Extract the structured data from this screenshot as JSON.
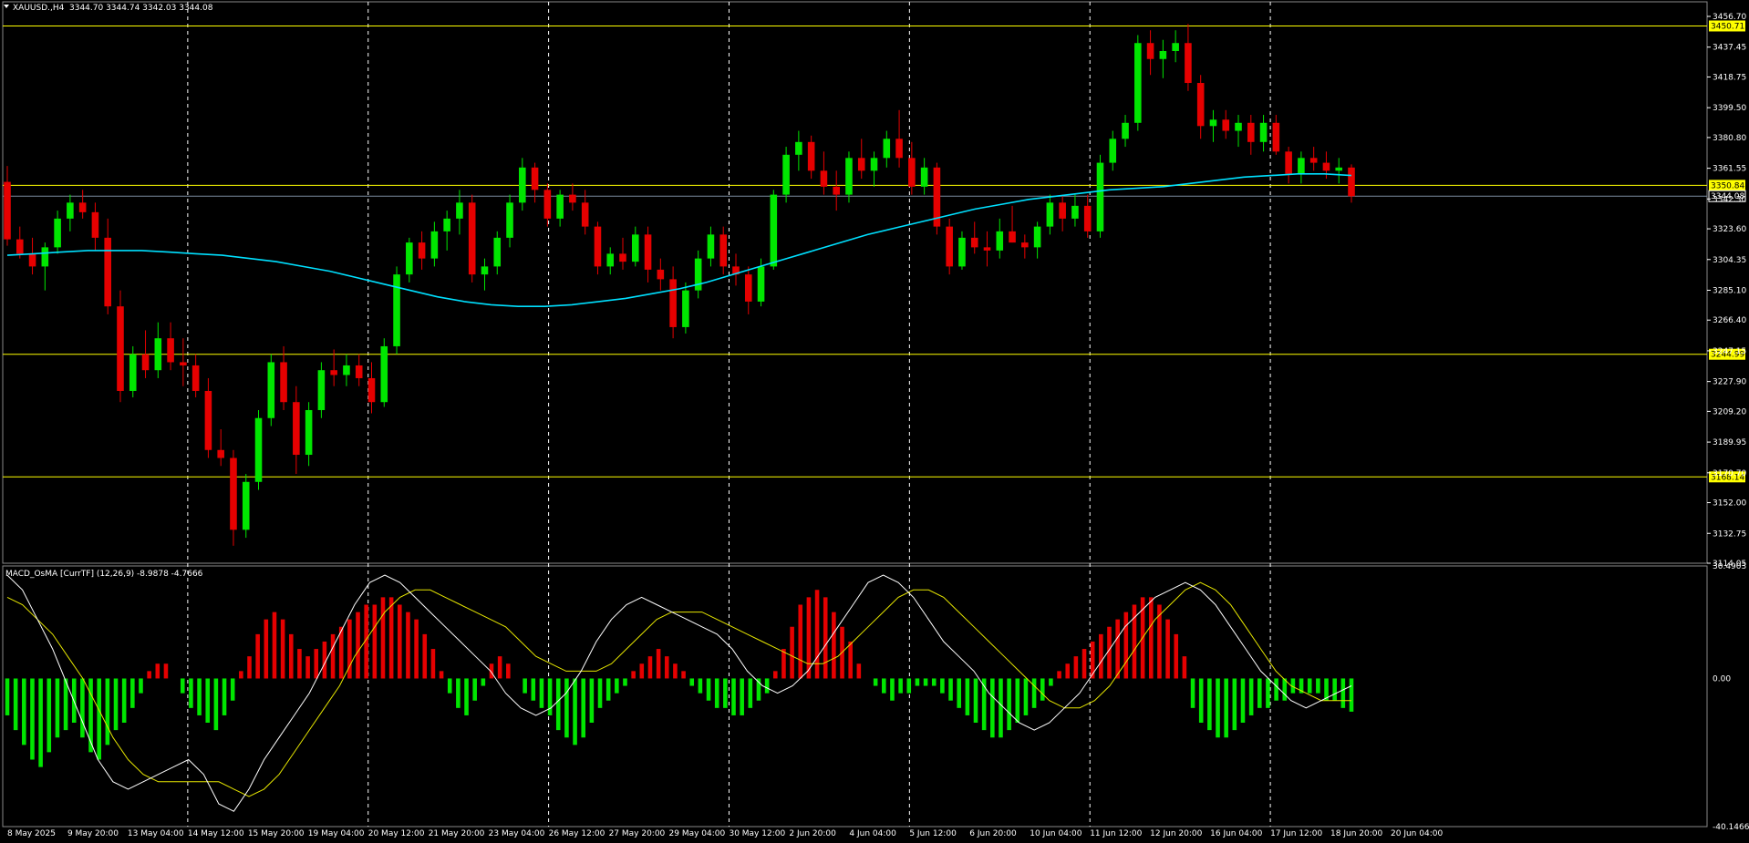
{
  "header": {
    "symbol": "XAUUSD.,H4",
    "ohlc": "3344.70 3344.74 3342.03 3344.08"
  },
  "indicator_header": "MACD_OsMA [CurrTF] (12,26,9) -8.9878 -4.7666",
  "colors": {
    "background": "#000000",
    "grid": "#ffffff",
    "bull": "#00e600",
    "bear": "#e60000",
    "ma_line": "#00e0ff",
    "level": "#ffff00",
    "macd_line": "#ffffff",
    "signal_line": "#e6e600"
  },
  "chart_data": [
    {
      "type": "candlestick",
      "symbol": "XAUUSD.",
      "timeframe": "H4",
      "ylim": [
        3114.05,
        3456.7
      ],
      "price_axis_ticks": [
        "3456.70",
        "3437.45",
        "3418.75",
        "3399.50",
        "3380.80",
        "3361.55",
        "3342.30",
        "3323.60",
        "3304.35",
        "3285.10",
        "3266.40",
        "3247.15",
        "3227.90",
        "3209.20",
        "3189.95",
        "3170.70",
        "3152.00",
        "3132.75",
        "3114.05"
      ],
      "time_axis_ticks": [
        "8 May 2025",
        "9 May 20:00",
        "13 May 04:00",
        "14 May 12:00",
        "15 May 20:00",
        "19 May 04:00",
        "20 May 12:00",
        "21 May 20:00",
        "23 May 04:00",
        "26 May 12:00",
        "27 May 20:00",
        "29 May 04:00",
        "30 May 12:00",
        "2 Jun 20:00",
        "4 Jun 04:00",
        "5 Jun 12:00",
        "6 Jun 20:00",
        "10 Jun 04:00",
        "11 Jun 12:00",
        "12 Jun 20:00",
        "16 Jun 04:00",
        "17 Jun 12:00",
        "18 Jun 20:00",
        "20 Jun 04:00"
      ],
      "horizontal_levels": [
        {
          "price": "3450.71",
          "color": "#ffff00"
        },
        {
          "price": "3350.84",
          "color": "#ffff00"
        },
        {
          "price": "3244.99",
          "color": "#ffff00"
        },
        {
          "price": "3168.14",
          "color": "#ffff00"
        }
      ],
      "current_price": "3344.08",
      "candles": [
        [
          3353,
          3363,
          3313,
          3317
        ],
        [
          3317,
          3325,
          3305,
          3308
        ],
        [
          3308,
          3318,
          3295,
          3300
        ],
        [
          3300,
          3315,
          3285,
          3312
        ],
        [
          3312,
          3335,
          3308,
          3330
        ],
        [
          3330,
          3345,
          3322,
          3340
        ],
        [
          3340,
          3348,
          3330,
          3334
        ],
        [
          3334,
          3340,
          3310,
          3318
        ],
        [
          3318,
          3330,
          3270,
          3275
        ],
        [
          3275,
          3285,
          3215,
          3222
        ],
        [
          3222,
          3250,
          3218,
          3245
        ],
        [
          3245,
          3260,
          3230,
          3235
        ],
        [
          3235,
          3265,
          3230,
          3255
        ],
        [
          3255,
          3265,
          3235,
          3240
        ],
        [
          3240,
          3255,
          3225,
          3238
        ],
        [
          3238,
          3245,
          3218,
          3222
        ],
        [
          3222,
          3230,
          3180,
          3185
        ],
        [
          3185,
          3198,
          3175,
          3180
        ],
        [
          3180,
          3185,
          3125,
          3135
        ],
        [
          3135,
          3170,
          3130,
          3165
        ],
        [
          3165,
          3210,
          3160,
          3205
        ],
        [
          3205,
          3245,
          3200,
          3240
        ],
        [
          3240,
          3250,
          3210,
          3215
        ],
        [
          3215,
          3225,
          3170,
          3182
        ],
        [
          3182,
          3215,
          3175,
          3210
        ],
        [
          3210,
          3240,
          3205,
          3235
        ],
        [
          3235,
          3248,
          3225,
          3232
        ],
        [
          3232,
          3245,
          3225,
          3238
        ],
        [
          3238,
          3245,
          3225,
          3230
        ],
        [
          3230,
          3240,
          3208,
          3215
        ],
        [
          3215,
          3255,
          3212,
          3250
        ],
        [
          3250,
          3300,
          3245,
          3295
        ],
        [
          3295,
          3318,
          3290,
          3315
        ],
        [
          3315,
          3322,
          3298,
          3305
        ],
        [
          3305,
          3328,
          3300,
          3322
        ],
        [
          3322,
          3335,
          3310,
          3330
        ],
        [
          3330,
          3348,
          3320,
          3340
        ],
        [
          3340,
          3345,
          3290,
          3295
        ],
        [
          3295,
          3305,
          3285,
          3300
        ],
        [
          3300,
          3322,
          3295,
          3318
        ],
        [
          3318,
          3345,
          3312,
          3340
        ],
        [
          3340,
          3368,
          3335,
          3362
        ],
        [
          3362,
          3365,
          3340,
          3348
        ],
        [
          3348,
          3352,
          3325,
          3330
        ],
        [
          3330,
          3348,
          3325,
          3345
        ],
        [
          3345,
          3352,
          3335,
          3340
        ],
        [
          3340,
          3348,
          3320,
          3325
        ],
        [
          3325,
          3328,
          3295,
          3300
        ],
        [
          3300,
          3312,
          3295,
          3308
        ],
        [
          3308,
          3318,
          3298,
          3303
        ],
        [
          3303,
          3325,
          3300,
          3320
        ],
        [
          3320,
          3325,
          3290,
          3298
        ],
        [
          3298,
          3305,
          3285,
          3292
        ],
        [
          3292,
          3300,
          3255,
          3262
        ],
        [
          3262,
          3290,
          3258,
          3285
        ],
        [
          3285,
          3310,
          3280,
          3305
        ],
        [
          3305,
          3325,
          3300,
          3320
        ],
        [
          3320,
          3325,
          3295,
          3300
        ],
        [
          3300,
          3308,
          3288,
          3295
        ],
        [
          3295,
          3300,
          3270,
          3278
        ],
        [
          3278,
          3305,
          3275,
          3300
        ],
        [
          3300,
          3348,
          3298,
          3345
        ],
        [
          3345,
          3375,
          3340,
          3370
        ],
        [
          3370,
          3385,
          3360,
          3378
        ],
        [
          3378,
          3382,
          3355,
          3360
        ],
        [
          3360,
          3372,
          3345,
          3350
        ],
        [
          3350,
          3360,
          3335,
          3345
        ],
        [
          3345,
          3372,
          3340,
          3368
        ],
        [
          3368,
          3380,
          3355,
          3360
        ],
        [
          3360,
          3372,
          3350,
          3368
        ],
        [
          3368,
          3385,
          3362,
          3380
        ],
        [
          3380,
          3398,
          3362,
          3368
        ],
        [
          3368,
          3378,
          3345,
          3350
        ],
        [
          3350,
          3368,
          3345,
          3362
        ],
        [
          3362,
          3365,
          3320,
          3325
        ],
        [
          3325,
          3330,
          3295,
          3300
        ],
        [
          3300,
          3322,
          3298,
          3318
        ],
        [
          3318,
          3328,
          3308,
          3312
        ],
        [
          3312,
          3322,
          3300,
          3310
        ],
        [
          3310,
          3330,
          3305,
          3322
        ],
        [
          3322,
          3338,
          3315,
          3315
        ],
        [
          3315,
          3320,
          3305,
          3312
        ],
        [
          3312,
          3328,
          3305,
          3325
        ],
        [
          3325,
          3345,
          3320,
          3340
        ],
        [
          3340,
          3345,
          3322,
          3330
        ],
        [
          3330,
          3345,
          3325,
          3338
        ],
        [
          3338,
          3345,
          3318,
          3322
        ],
        [
          3322,
          3370,
          3318,
          3365
        ],
        [
          3365,
          3385,
          3360,
          3380
        ],
        [
          3380,
          3395,
          3375,
          3390
        ],
        [
          3390,
          3445,
          3385,
          3440
        ],
        [
          3440,
          3448,
          3420,
          3430
        ],
        [
          3430,
          3442,
          3418,
          3435
        ],
        [
          3435,
          3448,
          3428,
          3440
        ],
        [
          3440,
          3452,
          3410,
          3415
        ],
        [
          3415,
          3420,
          3380,
          3388
        ],
        [
          3388,
          3398,
          3378,
          3392
        ],
        [
          3392,
          3398,
          3380,
          3385
        ],
        [
          3385,
          3395,
          3375,
          3390
        ],
        [
          3390,
          3395,
          3370,
          3378
        ],
        [
          3378,
          3395,
          3372,
          3390
        ],
        [
          3390,
          3395,
          3370,
          3372
        ],
        [
          3372,
          3375,
          3352,
          3358
        ],
        [
          3358,
          3372,
          3352,
          3368
        ],
        [
          3368,
          3375,
          3360,
          3365
        ],
        [
          3365,
          3372,
          3355,
          3360
        ],
        [
          3360,
          3368,
          3352,
          3362
        ],
        [
          3362,
          3364,
          3340,
          3344
        ]
      ],
      "moving_average": [
        3307,
        3308,
        3309,
        3310,
        3310,
        3310,
        3309,
        3308,
        3307,
        3305,
        3303,
        3300,
        3297,
        3293,
        3289,
        3285,
        3281,
        3278,
        3276,
        3275,
        3275,
        3276,
        3278,
        3280,
        3283,
        3286,
        3290,
        3295,
        3300,
        3305,
        3310,
        3315,
        3320,
        3324,
        3328,
        3332,
        3336,
        3339,
        3342,
        3344,
        3346,
        3348,
        3349,
        3350,
        3352,
        3354,
        3356,
        3357,
        3358,
        3358,
        3357
      ],
      "ma_start": 3307
    },
    {
      "type": "bar",
      "name": "MACD_OsMA",
      "ylim": [
        -40.1466,
        30.4903
      ],
      "axis_ticks": [
        "30.4903",
        "0.00",
        "-40.1466"
      ],
      "histogram": [
        -10,
        -14,
        -18,
        -22,
        -24,
        -20,
        -16,
        -14,
        -12,
        -16,
        -20,
        -22,
        -18,
        -14,
        -12,
        -8,
        -4,
        2,
        4,
        4,
        0,
        -4,
        -8,
        -10,
        -12,
        -14,
        -10,
        -6,
        2,
        6,
        12,
        16,
        18,
        16,
        12,
        8,
        6,
        8,
        10,
        12,
        14,
        16,
        18,
        20,
        20,
        22,
        22,
        20,
        18,
        16,
        12,
        8,
        2,
        -4,
        -8,
        -10,
        -6,
        -2,
        4,
        6,
        4,
        0,
        -4,
        -6,
        -8,
        -10,
        -14,
        -16,
        -18,
        -16,
        -12,
        -8,
        -6,
        -4,
        -2,
        2,
        4,
        6,
        8,
        6,
        4,
        2,
        -2,
        -4,
        -6,
        -8,
        -8,
        -10,
        -10,
        -8,
        -6,
        -4,
        2,
        8,
        14,
        20,
        22,
        24,
        22,
        18,
        14,
        10,
        4,
        0,
        -2,
        -4,
        -6,
        -4,
        -4,
        -2,
        -2,
        -2,
        -4,
        -6,
        -8,
        -10,
        -12,
        -14,
        -16,
        -16,
        -14,
        -12,
        -10,
        -8,
        -6,
        -2,
        2,
        4,
        6,
        8,
        10,
        12,
        14,
        16,
        18,
        20,
        22,
        22,
        20,
        16,
        12,
        6,
        -8,
        -12,
        -14,
        -16,
        -16,
        -14,
        -12,
        -10,
        -8,
        -8,
        -6,
        -6,
        -4,
        -4,
        -4,
        -4,
        -6,
        -6,
        -8,
        -9
      ],
      "macd_line": [
        28,
        24,
        16,
        8,
        -2,
        -12,
        -22,
        -28,
        -30,
        -28,
        -26,
        -24,
        -22,
        -26,
        -34,
        -36,
        -30,
        -22,
        -16,
        -10,
        -4,
        4,
        12,
        20,
        26,
        28,
        26,
        22,
        18,
        14,
        10,
        6,
        2,
        -4,
        -8,
        -10,
        -8,
        -4,
        2,
        10,
        16,
        20,
        22,
        20,
        18,
        16,
        14,
        12,
        8,
        2,
        -2,
        -4,
        -2,
        2,
        8,
        14,
        20,
        26,
        28,
        26,
        22,
        16,
        10,
        6,
        2,
        -4,
        -8,
        -12,
        -14,
        -12,
        -8,
        -4,
        2,
        8,
        14,
        18,
        22,
        24,
        26,
        24,
        20,
        14,
        8,
        2,
        -2,
        -6,
        -8,
        -6,
        -4,
        -2
      ],
      "signal_line": [
        22,
        20,
        16,
        12,
        6,
        0,
        -8,
        -16,
        -22,
        -26,
        -28,
        -28,
        -28,
        -28,
        -28,
        -30,
        -32,
        -30,
        -26,
        -20,
        -14,
        -8,
        -2,
        6,
        12,
        18,
        22,
        24,
        24,
        22,
        20,
        18,
        16,
        14,
        10,
        6,
        4,
        2,
        2,
        2,
        4,
        8,
        12,
        16,
        18,
        18,
        18,
        16,
        14,
        12,
        10,
        8,
        6,
        4,
        4,
        6,
        10,
        14,
        18,
        22,
        24,
        24,
        22,
        18,
        14,
        10,
        6,
        2,
        -2,
        -6,
        -8,
        -8,
        -6,
        -2,
        4,
        10,
        16,
        20,
        24,
        26,
        24,
        20,
        14,
        8,
        2,
        -2,
        -4,
        -6,
        -6,
        -6
      ]
    }
  ]
}
